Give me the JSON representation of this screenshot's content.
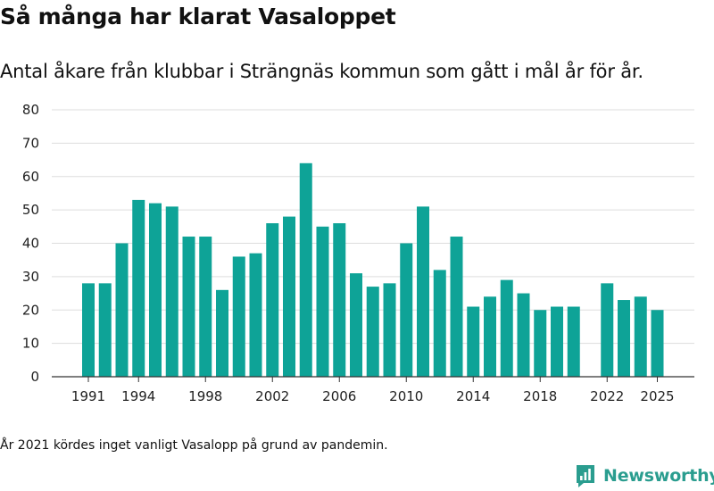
{
  "header": {
    "title": "Så många har klarat Vasaloppet",
    "subtitle": "Antal åkare från klubbar i Strängnäs kommun som gått i mål år för år."
  },
  "footer": {
    "note": "År 2021 kördes inget vanligt Vasalopp på grund av pandemin.",
    "brand": "Newsworthy",
    "brand_icon": "newsworthy-logo-icon"
  },
  "colors": {
    "bar": "#0ea397",
    "grid": "#dddddd",
    "brand": "#2a9d8f"
  },
  "chart_data": {
    "type": "bar",
    "title": "Så många har klarat Vasaloppet",
    "xlabel": "",
    "ylabel": "",
    "ylim": [
      0,
      80
    ],
    "y_ticks": [
      0,
      10,
      20,
      30,
      40,
      50,
      60,
      70,
      80
    ],
    "x_tick_labels": [
      1991,
      1994,
      1998,
      2002,
      2006,
      2010,
      2014,
      2018,
      2022,
      2025
    ],
    "categories": [
      1991,
      1992,
      1993,
      1994,
      1995,
      1996,
      1997,
      1998,
      1999,
      2000,
      2001,
      2002,
      2003,
      2004,
      2005,
      2006,
      2007,
      2008,
      2009,
      2010,
      2011,
      2012,
      2013,
      2014,
      2015,
      2016,
      2017,
      2018,
      2019,
      2020,
      2021,
      2022,
      2023,
      2024,
      2025
    ],
    "values": [
      28,
      28,
      40,
      53,
      52,
      51,
      42,
      42,
      26,
      36,
      37,
      46,
      48,
      64,
      45,
      46,
      31,
      27,
      28,
      40,
      51,
      32,
      42,
      21,
      24,
      29,
      25,
      20,
      21,
      21,
      null,
      28,
      23,
      24,
      20
    ],
    "grid": true,
    "legend": "none"
  }
}
